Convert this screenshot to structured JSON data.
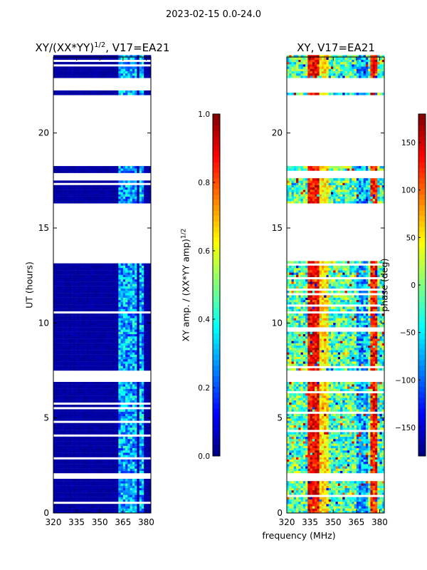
{
  "suptitle": "2023-02-15 0.0-24.0",
  "chart_data": [
    {
      "type": "heatmap",
      "title_base": "XY/(XX*YY)",
      "title_exponent": "1/2",
      "title_suffix": ", V17=EA21",
      "xlabel": "",
      "ylabel": "UT (hours)",
      "xlim": [
        320,
        383
      ],
      "ylim": [
        0,
        24
      ],
      "xticks": [
        320,
        335,
        350,
        365,
        380
      ],
      "yticks": [
        0,
        5,
        10,
        15,
        20
      ],
      "colormap": "jet",
      "colorbar": {
        "label_base": "XY amp. / (XX*YY amp)",
        "label_exponent": "1/2",
        "range": [
          0.0,
          1.0
        ],
        "ticks": [
          0.0,
          0.2,
          0.4,
          0.6,
          0.8,
          1.0
        ],
        "tick_labels": [
          "0.0",
          "0.2",
          "0.4",
          "0.6",
          "0.8",
          "1.0"
        ]
      },
      "data_segments_hours": [
        [
          0.0,
          1.8
        ],
        [
          2.1,
          6.8
        ],
        [
          7.5,
          13.2
        ],
        [
          16.3,
          17.6
        ],
        [
          17.9,
          18.2
        ],
        [
          22.0,
          22.2
        ],
        [
          22.9,
          24.0
        ]
      ],
      "hot_channel_bands_mhz": [
        [
          362,
          366
        ],
        [
          366,
          370
        ],
        [
          371,
          374
        ],
        [
          375,
          378
        ]
      ]
    },
    {
      "type": "heatmap",
      "title": "XY, V17=EA21",
      "xlabel": "frequency (MHz)",
      "ylabel": "",
      "xlim": [
        320,
        383
      ],
      "ylim": [
        0,
        24
      ],
      "xticks": [
        320,
        335,
        350,
        365,
        380
      ],
      "yticks": [
        0,
        5,
        10,
        15,
        20
      ],
      "colormap": "jet",
      "colorbar": {
        "label": "phase (deg)",
        "range": [
          -180,
          180
        ],
        "ticks": [
          -150,
          -100,
          -50,
          0,
          50,
          100,
          150
        ],
        "tick_labels": [
          "−150",
          "−100",
          "−50",
          "0",
          "50",
          "100",
          "150"
        ]
      },
      "data_segments_hours": [
        [
          0.0,
          1.8
        ],
        [
          2.1,
          6.8
        ],
        [
          7.5,
          13.2
        ],
        [
          16.3,
          17.6
        ],
        [
          17.9,
          18.2
        ],
        [
          22.0,
          22.2
        ],
        [
          22.9,
          24.0
        ]
      ],
      "phase_structure_bands_mhz": [
        [
          333,
          340
        ],
        [
          340,
          346
        ],
        [
          365,
          372
        ],
        [
          373,
          378
        ]
      ]
    }
  ]
}
